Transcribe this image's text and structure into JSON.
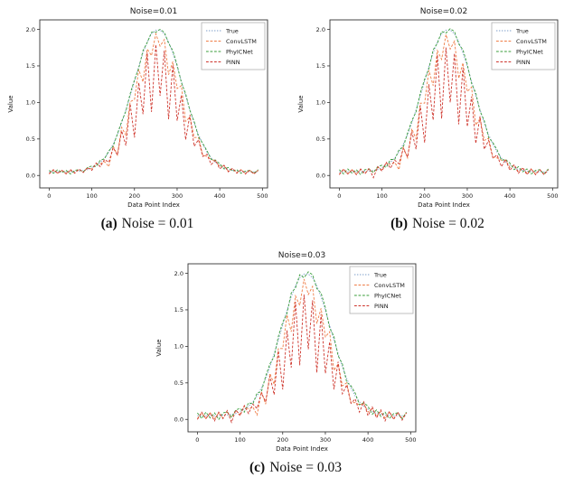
{
  "panel": {
    "background": "#ffffff",
    "text_color": "#1a1a1a",
    "axis_color": "#333333"
  },
  "chart_data": [
    {
      "type": "line",
      "title": "Noise=0.01",
      "caption_label": "(a)",
      "caption_text": "Noise = 0.01",
      "xlabel": "Data Point Index",
      "ylabel": "Value",
      "xlim": [
        -22,
        512
      ],
      "ylim": [
        -0.17,
        2.13
      ],
      "xticks": [
        0,
        100,
        200,
        300,
        400,
        500
      ],
      "yticks": [
        0.0,
        0.5,
        1.0,
        1.5,
        2.0
      ],
      "grid": false,
      "legend_position": "upper right",
      "x": [
        0,
        10,
        20,
        30,
        40,
        50,
        60,
        70,
        80,
        90,
        100,
        110,
        120,
        130,
        140,
        150,
        160,
        170,
        180,
        190,
        200,
        210,
        220,
        230,
        240,
        250,
        260,
        270,
        280,
        290,
        300,
        310,
        320,
        330,
        340,
        350,
        360,
        370,
        380,
        390,
        400,
        410,
        420,
        430,
        440,
        450,
        460,
        470,
        480,
        490
      ],
      "series": [
        {
          "name": "True",
          "color": "#7b9cc9",
          "dash": "dotted",
          "values": [
            0.05,
            0.05,
            0.05,
            0.05,
            0.05,
            0.05,
            0.06,
            0.06,
            0.07,
            0.08,
            0.11,
            0.14,
            0.18,
            0.24,
            0.32,
            0.43,
            0.56,
            0.72,
            0.9,
            1.09,
            1.29,
            1.49,
            1.68,
            1.83,
            1.94,
            1.99,
            1.99,
            1.94,
            1.83,
            1.68,
            1.49,
            1.29,
            1.09,
            0.9,
            0.72,
            0.56,
            0.43,
            0.32,
            0.24,
            0.18,
            0.14,
            0.11,
            0.08,
            0.07,
            0.06,
            0.06,
            0.05,
            0.05,
            0.05,
            0.05
          ]
        },
        {
          "name": "ConvLSTM",
          "color": "#ef7c45",
          "dash": "dashed",
          "values": [
            0.03,
            0.07,
            0.03,
            0.07,
            0.03,
            0.07,
            0.04,
            0.08,
            0.05,
            0.1,
            0.09,
            0.16,
            0.16,
            0.19,
            0.12,
            0.4,
            0.28,
            0.66,
            0.55,
            1.01,
            1.04,
            1.45,
            1.28,
            1.73,
            1.64,
            1.94,
            1.77,
            1.86,
            1.38,
            1.56,
            1.19,
            1.23,
            0.74,
            0.8,
            0.52,
            0.52,
            0.28,
            0.26,
            0.22,
            0.2,
            0.12,
            0.13,
            0.06,
            0.09,
            0.04,
            0.08,
            0.03,
            0.07,
            0.03,
            0.07
          ]
        },
        {
          "name": "PhyICNet",
          "color": "#3a9e3a",
          "dash": "dashed",
          "values": [
            0.07,
            0.03,
            0.08,
            0.04,
            0.07,
            0.02,
            0.07,
            0.08,
            0.05,
            0.11,
            0.13,
            0.12,
            0.21,
            0.23,
            0.34,
            0.4,
            0.57,
            0.74,
            0.88,
            1.12,
            1.31,
            1.47,
            1.71,
            1.82,
            1.96,
            1.96,
            2.0,
            1.96,
            1.81,
            1.71,
            1.51,
            1.27,
            1.12,
            0.89,
            0.74,
            0.53,
            0.44,
            0.34,
            0.22,
            0.21,
            0.16,
            0.09,
            0.11,
            0.06,
            0.08,
            0.03,
            0.06,
            0.07,
            0.03,
            0.08
          ]
        },
        {
          "name": "PINN",
          "color": "#ce352c",
          "dash": "dashed",
          "values": [
            0.02,
            0.08,
            0.03,
            0.07,
            0.02,
            0.08,
            0.03,
            0.09,
            0.04,
            0.11,
            0.07,
            0.17,
            0.12,
            0.22,
            0.18,
            0.38,
            0.28,
            0.61,
            0.41,
            0.98,
            0.52,
            1.27,
            0.84,
            1.68,
            0.87,
            1.79,
            1.09,
            1.71,
            0.77,
            1.51,
            0.75,
            1.1,
            0.49,
            0.83,
            0.4,
            0.49,
            0.26,
            0.29,
            0.15,
            0.21,
            0.09,
            0.14,
            0.05,
            0.1,
            0.03,
            0.08,
            0.02,
            0.07,
            0.02,
            0.07
          ]
        }
      ]
    },
    {
      "type": "line",
      "title": "Noise=0.02",
      "caption_label": "(b)",
      "caption_text": "Noise = 0.02",
      "xlabel": "Data Point Index",
      "ylabel": "Value",
      "xlim": [
        -22,
        512
      ],
      "ylim": [
        -0.17,
        2.13
      ],
      "xticks": [
        0,
        100,
        200,
        300,
        400,
        500
      ],
      "yticks": [
        0.0,
        0.5,
        1.0,
        1.5,
        2.0
      ],
      "grid": false,
      "legend_position": "upper right",
      "x": [
        0,
        10,
        20,
        30,
        40,
        50,
        60,
        70,
        80,
        90,
        100,
        110,
        120,
        130,
        140,
        150,
        160,
        170,
        180,
        190,
        200,
        210,
        220,
        230,
        240,
        250,
        260,
        270,
        280,
        290,
        300,
        310,
        320,
        330,
        340,
        350,
        360,
        370,
        380,
        390,
        400,
        410,
        420,
        430,
        440,
        450,
        460,
        470,
        480,
        490
      ],
      "series": [
        {
          "name": "True",
          "color": "#7b9cc9",
          "dash": "dotted",
          "values": [
            0.05,
            0.05,
            0.05,
            0.05,
            0.05,
            0.05,
            0.06,
            0.06,
            0.07,
            0.08,
            0.11,
            0.14,
            0.18,
            0.24,
            0.32,
            0.43,
            0.56,
            0.72,
            0.9,
            1.09,
            1.29,
            1.49,
            1.68,
            1.83,
            1.94,
            1.99,
            1.99,
            1.94,
            1.83,
            1.68,
            1.49,
            1.29,
            1.09,
            0.9,
            0.72,
            0.56,
            0.43,
            0.32,
            0.24,
            0.18,
            0.14,
            0.11,
            0.08,
            0.07,
            0.06,
            0.06,
            0.05,
            0.05,
            0.05,
            0.05
          ]
        },
        {
          "name": "ConvLSTM",
          "color": "#ef7c45",
          "dash": "dashed",
          "values": [
            0.02,
            0.08,
            0.02,
            0.08,
            0.02,
            0.08,
            0.03,
            0.09,
            0.04,
            0.11,
            0.08,
            0.17,
            0.15,
            0.18,
            0.08,
            0.39,
            0.24,
            0.64,
            0.5,
            0.99,
            0.99,
            1.44,
            1.23,
            1.71,
            1.59,
            1.93,
            1.73,
            1.84,
            1.33,
            1.54,
            1.15,
            1.21,
            0.69,
            0.78,
            0.48,
            0.51,
            0.25,
            0.24,
            0.21,
            0.21,
            0.11,
            0.14,
            0.05,
            0.1,
            0.03,
            0.09,
            0.02,
            0.08,
            0.02,
            0.08
          ]
        },
        {
          "name": "PhyICNet",
          "color": "#3a9e3a",
          "dash": "dashed",
          "values": [
            0.08,
            0.02,
            0.09,
            0.03,
            0.08,
            0.01,
            0.08,
            0.09,
            0.04,
            0.12,
            0.14,
            0.11,
            0.22,
            0.22,
            0.35,
            0.39,
            0.58,
            0.75,
            0.87,
            1.13,
            1.32,
            1.46,
            1.72,
            1.81,
            1.97,
            1.95,
            2.01,
            1.97,
            1.8,
            1.72,
            1.52,
            1.26,
            1.13,
            0.88,
            0.75,
            0.52,
            0.45,
            0.35,
            0.21,
            0.22,
            0.17,
            0.08,
            0.12,
            0.05,
            0.09,
            0.02,
            0.07,
            0.08,
            0.02,
            0.09
          ]
        },
        {
          "name": "PINN",
          "color": "#ce352c",
          "dash": "dashed",
          "values": [
            0.01,
            0.09,
            0.02,
            0.08,
            0.01,
            0.09,
            0.02,
            0.1,
            -0.03,
            0.12,
            0.06,
            0.18,
            0.1,
            0.21,
            0.16,
            0.37,
            0.25,
            0.6,
            0.36,
            0.96,
            0.45,
            1.25,
            0.76,
            1.65,
            0.78,
            1.75,
            1.0,
            1.67,
            0.7,
            1.48,
            0.67,
            1.08,
            0.44,
            0.81,
            0.36,
            0.48,
            0.24,
            0.28,
            0.12,
            0.22,
            0.07,
            0.15,
            0.03,
            0.11,
            0.01,
            0.09,
            0.01,
            0.08,
            0.01,
            0.08
          ]
        }
      ]
    },
    {
      "type": "line",
      "title": "Noise=0.03",
      "caption_label": "(c)",
      "caption_text": "Noise = 0.03",
      "xlabel": "Data Point Index",
      "ylabel": "Value",
      "xlim": [
        -22,
        512
      ],
      "ylim": [
        -0.17,
        2.13
      ],
      "xticks": [
        0,
        100,
        200,
        300,
        400,
        500
      ],
      "yticks": [
        0.0,
        0.5,
        1.0,
        1.5,
        2.0
      ],
      "grid": false,
      "legend_position": "upper right",
      "x": [
        0,
        10,
        20,
        30,
        40,
        50,
        60,
        70,
        80,
        90,
        100,
        110,
        120,
        130,
        140,
        150,
        160,
        170,
        180,
        190,
        200,
        210,
        220,
        230,
        240,
        250,
        260,
        270,
        280,
        290,
        300,
        310,
        320,
        330,
        340,
        350,
        360,
        370,
        380,
        390,
        400,
        410,
        420,
        430,
        440,
        450,
        460,
        470,
        480,
        490
      ],
      "series": [
        {
          "name": "True",
          "color": "#7b9cc9",
          "dash": "dotted",
          "values": [
            0.05,
            0.05,
            0.05,
            0.05,
            0.05,
            0.05,
            0.06,
            0.06,
            0.07,
            0.08,
            0.11,
            0.14,
            0.18,
            0.24,
            0.32,
            0.43,
            0.56,
            0.72,
            0.9,
            1.09,
            1.29,
            1.49,
            1.68,
            1.83,
            1.94,
            1.99,
            1.99,
            1.94,
            1.83,
            1.68,
            1.49,
            1.29,
            1.09,
            0.9,
            0.72,
            0.56,
            0.43,
            0.32,
            0.24,
            0.18,
            0.14,
            0.11,
            0.08,
            0.07,
            0.06,
            0.06,
            0.05,
            0.05,
            0.05,
            0.05
          ]
        },
        {
          "name": "ConvLSTM",
          "color": "#ef7c45",
          "dash": "dashed",
          "values": [
            0.01,
            0.09,
            0.01,
            0.09,
            0.01,
            0.09,
            0.02,
            0.1,
            0.03,
            0.12,
            0.07,
            0.18,
            0.14,
            0.17,
            0.06,
            0.38,
            0.21,
            0.63,
            0.48,
            0.97,
            0.97,
            1.43,
            1.2,
            1.69,
            1.56,
            1.92,
            1.71,
            1.82,
            1.31,
            1.52,
            1.13,
            1.2,
            0.67,
            0.76,
            0.46,
            0.5,
            0.23,
            0.23,
            0.2,
            0.22,
            0.1,
            0.15,
            0.04,
            0.11,
            0.02,
            0.1,
            0.01,
            0.09,
            0.01,
            0.09
          ]
        },
        {
          "name": "PhyICNet",
          "color": "#3a9e3a",
          "dash": "dashed",
          "values": [
            0.09,
            0.01,
            0.1,
            0.02,
            0.09,
            0.0,
            0.09,
            0.1,
            0.03,
            0.13,
            0.15,
            0.1,
            0.23,
            0.21,
            0.36,
            0.38,
            0.59,
            0.76,
            0.86,
            1.14,
            1.33,
            1.45,
            1.73,
            1.8,
            1.98,
            1.94,
            2.02,
            1.98,
            1.79,
            1.73,
            1.53,
            1.25,
            1.14,
            0.87,
            0.76,
            0.51,
            0.46,
            0.36,
            0.2,
            0.23,
            0.18,
            0.07,
            0.13,
            0.04,
            0.1,
            0.01,
            0.08,
            0.09,
            0.01,
            0.1
          ]
        },
        {
          "name": "PINN",
          "color": "#ce352c",
          "dash": "dashed",
          "values": [
            0.0,
            0.1,
            0.01,
            0.09,
            -0.02,
            0.1,
            0.01,
            0.12,
            -0.04,
            0.13,
            0.05,
            0.19,
            0.08,
            0.21,
            0.15,
            0.36,
            0.24,
            0.59,
            0.34,
            0.94,
            0.41,
            1.22,
            0.71,
            1.61,
            0.74,
            1.71,
            0.96,
            1.63,
            0.64,
            1.44,
            0.63,
            1.06,
            0.41,
            0.79,
            0.35,
            0.47,
            0.22,
            0.28,
            0.1,
            0.24,
            0.05,
            0.17,
            0.02,
            0.13,
            -0.02,
            0.11,
            0.0,
            0.1,
            -0.01,
            0.09
          ]
        }
      ]
    }
  ]
}
